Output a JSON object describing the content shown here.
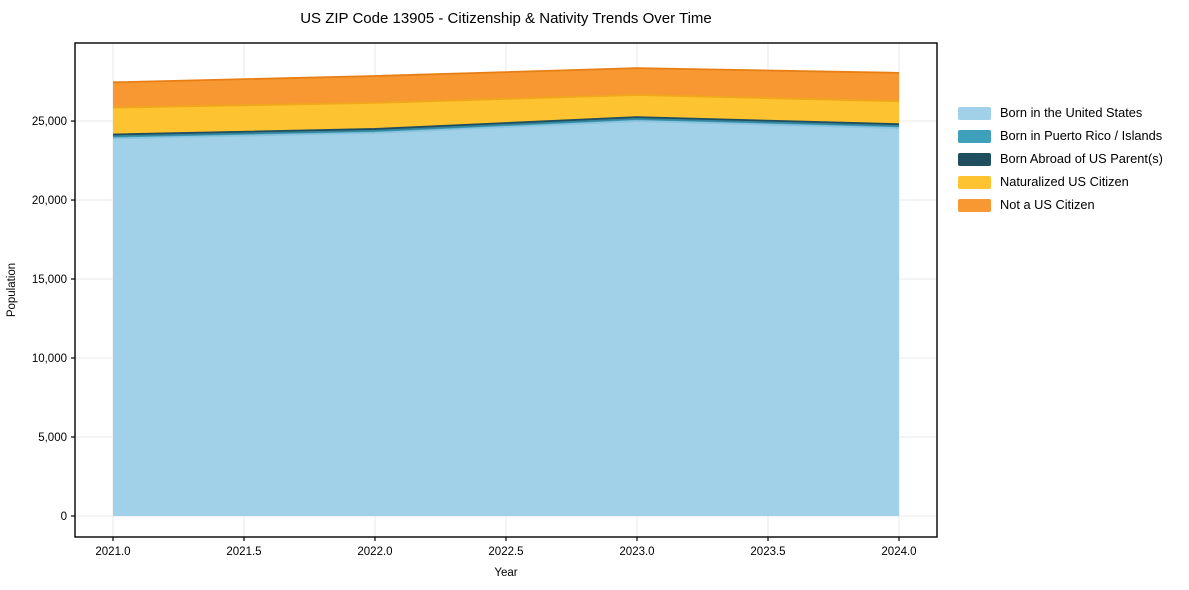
{
  "chart_data": {
    "type": "area",
    "stacked": true,
    "title": "US ZIP Code 13905 - Citizenship & Nativity Trends Over Time",
    "xlabel": "Year",
    "ylabel": "Population",
    "x": [
      2021,
      2022,
      2023,
      2024
    ],
    "series": [
      {
        "name": "Born in the United States",
        "color": "#a0d1e8",
        "edge": "#8cc3dd",
        "values": [
          23900,
          24250,
          25000,
          24550
        ]
      },
      {
        "name": "Born in Puerto Rico / Islands",
        "color": "#3fa0bb",
        "edge": "#35879e",
        "values": [
          150,
          150,
          150,
          150
        ]
      },
      {
        "name": "Born Abroad of US Parent(s)",
        "color": "#1f4e5f",
        "edge": "#1f4e5f",
        "values": [
          100,
          100,
          100,
          100
        ]
      },
      {
        "name": "Naturalized US Citizen",
        "color": "#fdc330",
        "edge": "#f0a81a",
        "values": [
          1700,
          1650,
          1400,
          1450
        ]
      },
      {
        "name": "Not a US Citizen",
        "color": "#f79832",
        "edge": "#e87f15",
        "values": [
          1600,
          1700,
          1700,
          1800
        ]
      }
    ],
    "totals": [
      27450,
      27850,
      28350,
      28050
    ],
    "xticks": [
      2021.0,
      2021.5,
      2022.0,
      2022.5,
      2023.0,
      2023.5,
      2024.0
    ],
    "xtick_labels": [
      "2021.0",
      "2021.5",
      "2022.0",
      "2022.5",
      "2023.0",
      "2023.5",
      "2024.0"
    ],
    "yticks": [
      0,
      5000,
      10000,
      15000,
      20000,
      25000
    ],
    "ytick_labels": [
      "0",
      "5,000",
      "10,000",
      "15,000",
      "20,000",
      "25,000"
    ],
    "xlim": [
      2020.855,
      2024.145
    ],
    "ylim": [
      -1330,
      29940
    ],
    "grid": true,
    "legend_position": "right-outside",
    "grid_color": "#e9e9e9",
    "spine_color": "#000000",
    "tick_color": "#000000",
    "text_color": "#000000",
    "background": "#ffffff"
  }
}
